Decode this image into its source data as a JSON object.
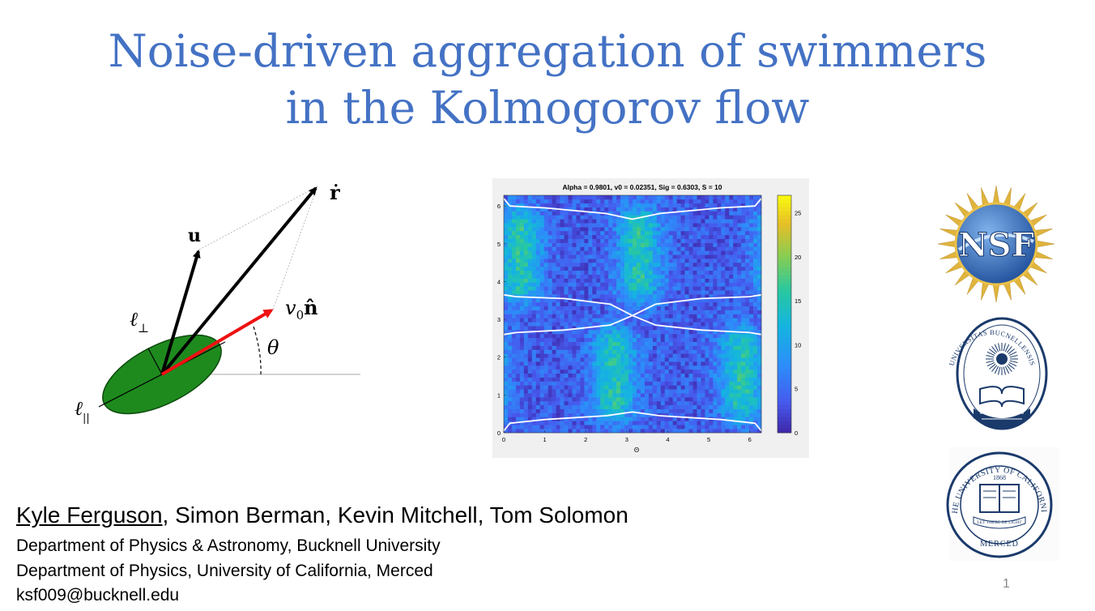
{
  "slide": {
    "title_line1": "Noise-driven aggregation of swimmers",
    "title_line2": "in the Kolmogorov flow",
    "page_number": "1"
  },
  "authors": {
    "first": "Kyle Ferguson",
    "rest": ", Simon Berman, Kevin Mitchell, Tom Solomon"
  },
  "affiliations": [
    "Department of Physics & Astronomy, Bucknell University",
    "Department of Physics, University of California, Merced",
    "ksf009@bucknell.edu"
  ],
  "diagram": {
    "labels": {
      "r_dot": "ṙ",
      "u": "u",
      "v0n": "v",
      "v0n_sub": "0",
      "v0n_n": "n̂",
      "theta": "θ",
      "l_perp": "ℓ",
      "l_perp_sub": "⊥",
      "l_par": "ℓ",
      "l_par_sub": "||"
    },
    "colors": {
      "body": "#1e8a1e",
      "velocity_arrow": "#ee1111",
      "arrows": "#000000"
    }
  },
  "chart_data": {
    "type": "heatmap",
    "title": "Alpha = 0.9801, v0 = 0.02351, Sig = 0.6303, S = 10",
    "xlabel": "Θ",
    "ylabel": "",
    "xlim": [
      0,
      6.283
    ],
    "ylim": [
      0,
      6.283
    ],
    "x_ticks": [
      "0",
      "1",
      "2",
      "3",
      "4",
      "5",
      "6"
    ],
    "y_ticks": [
      "0",
      "1",
      "2",
      "3",
      "4",
      "5",
      "6"
    ],
    "colorbar_ticks": [
      "0",
      "5",
      "10",
      "15",
      "20",
      "25"
    ],
    "colorbar_range": [
      0,
      27
    ],
    "colormap": "parula",
    "high_density_regions": [
      {
        "x_center": 0.4,
        "y_range": [
          3.4,
          6.0
        ]
      },
      {
        "x_center": 3.3,
        "y_range": [
          3.4,
          6.0
        ]
      },
      {
        "x_center": 2.7,
        "y_range": [
          0.3,
          2.8
        ]
      },
      {
        "x_center": 5.8,
        "y_range": [
          0.3,
          2.8
        ]
      }
    ],
    "white_curves": [
      {
        "name": "",
        "x": [
          0,
          0.15,
          1.0,
          2.5,
          3.14,
          3.8,
          5.3,
          6.13,
          6.283
        ],
        "y": [
          6.2,
          6.0,
          5.95,
          5.8,
          5.65,
          5.8,
          5.95,
          6.0,
          6.2
        ]
      },
      {
        "name": "",
        "x": [
          0,
          0.3,
          1.5,
          2.6,
          3.14,
          3.7,
          4.8,
          6.0,
          6.283
        ],
        "y": [
          3.65,
          3.6,
          3.55,
          3.4,
          3.1,
          3.4,
          3.55,
          3.6,
          3.65
        ]
      },
      {
        "name": "",
        "x": [
          0,
          0.3,
          1.5,
          2.6,
          3.14,
          3.7,
          4.8,
          6.0,
          6.283
        ],
        "y": [
          2.6,
          2.65,
          2.72,
          2.85,
          3.1,
          2.85,
          2.72,
          2.65,
          2.6
        ]
      },
      {
        "name": "",
        "x": [
          0,
          0.15,
          1.0,
          2.5,
          3.14,
          3.8,
          5.3,
          6.13,
          6.283
        ],
        "y": [
          0.05,
          0.25,
          0.35,
          0.45,
          0.55,
          0.45,
          0.35,
          0.25,
          0.05
        ]
      }
    ]
  },
  "logos": [
    {
      "name": "nsf-logo",
      "text": "NSF",
      "color": "#1f4e9a"
    },
    {
      "name": "bucknell-seal",
      "text": "UNIVERSITAS BUCNELLENSIS",
      "color": "#1a3a6b"
    },
    {
      "name": "uc-seal",
      "text": "THE UNIVERSITY OF CALIFORNIA",
      "text2": "LET THERE BE LIGHT",
      "text3": "MERCED",
      "year": "1868",
      "color": "#1a3a6b"
    }
  ]
}
